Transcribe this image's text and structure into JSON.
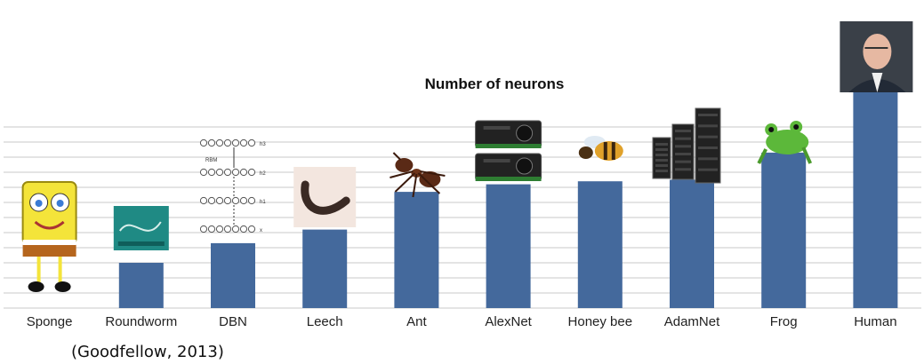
{
  "chart_data": {
    "type": "bar",
    "title": "Number of neurons",
    "xlabel": "",
    "ylabel": "",
    "categories": [
      "Sponge",
      "Roundworm",
      "DBN",
      "Leech",
      "Ant",
      "AlexNet",
      "Honey bee",
      "AdamNet",
      "Frog",
      "Human"
    ],
    "values": [
      0,
      3,
      4.3,
      5.2,
      7.7,
      8.2,
      8.4,
      8.5,
      10.3,
      14.3
    ],
    "ylim": [
      0,
      15
    ],
    "grid": true,
    "bar_color": "#44699c",
    "grid_color": "#c8c8c8",
    "icons": [
      "sponge-icon",
      "roundworm-icon",
      "dbn-diagram-icon",
      "leech-icon",
      "ant-icon",
      "gpu-icon",
      "honey-bee-icon",
      "server-icon",
      "frog-icon",
      "human-portrait-icon"
    ],
    "dbn_labels": [
      "RBM",
      "h3",
      "h2",
      "h1",
      "x"
    ]
  },
  "citation": "(Goodfellow, 2013)"
}
